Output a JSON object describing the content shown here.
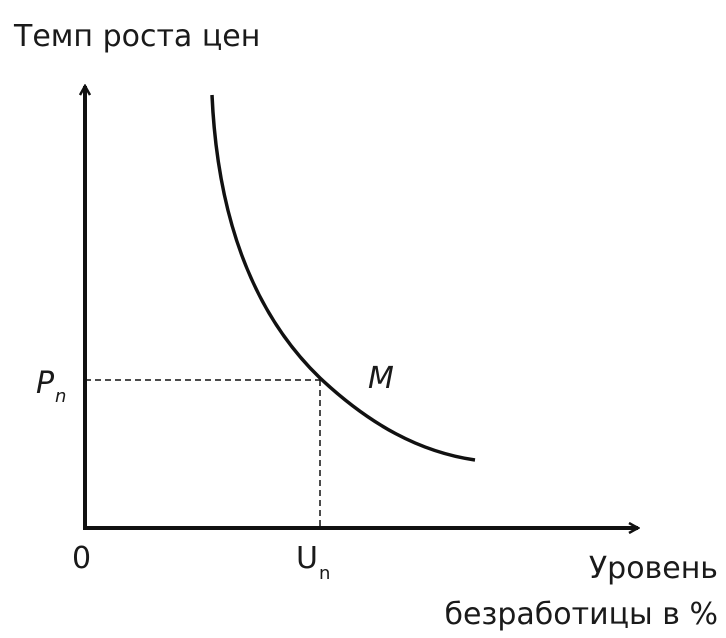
{
  "y_axis_label": "Темп роста цен",
  "x_axis_label": [
    "Уровень",
    "безработицы в %"
  ],
  "origin_label": "0",
  "point_label": "M",
  "y_marker": {
    "label": "P",
    "subscript": "n"
  },
  "x_marker": {
    "label": "U",
    "subscript": "n"
  }
}
